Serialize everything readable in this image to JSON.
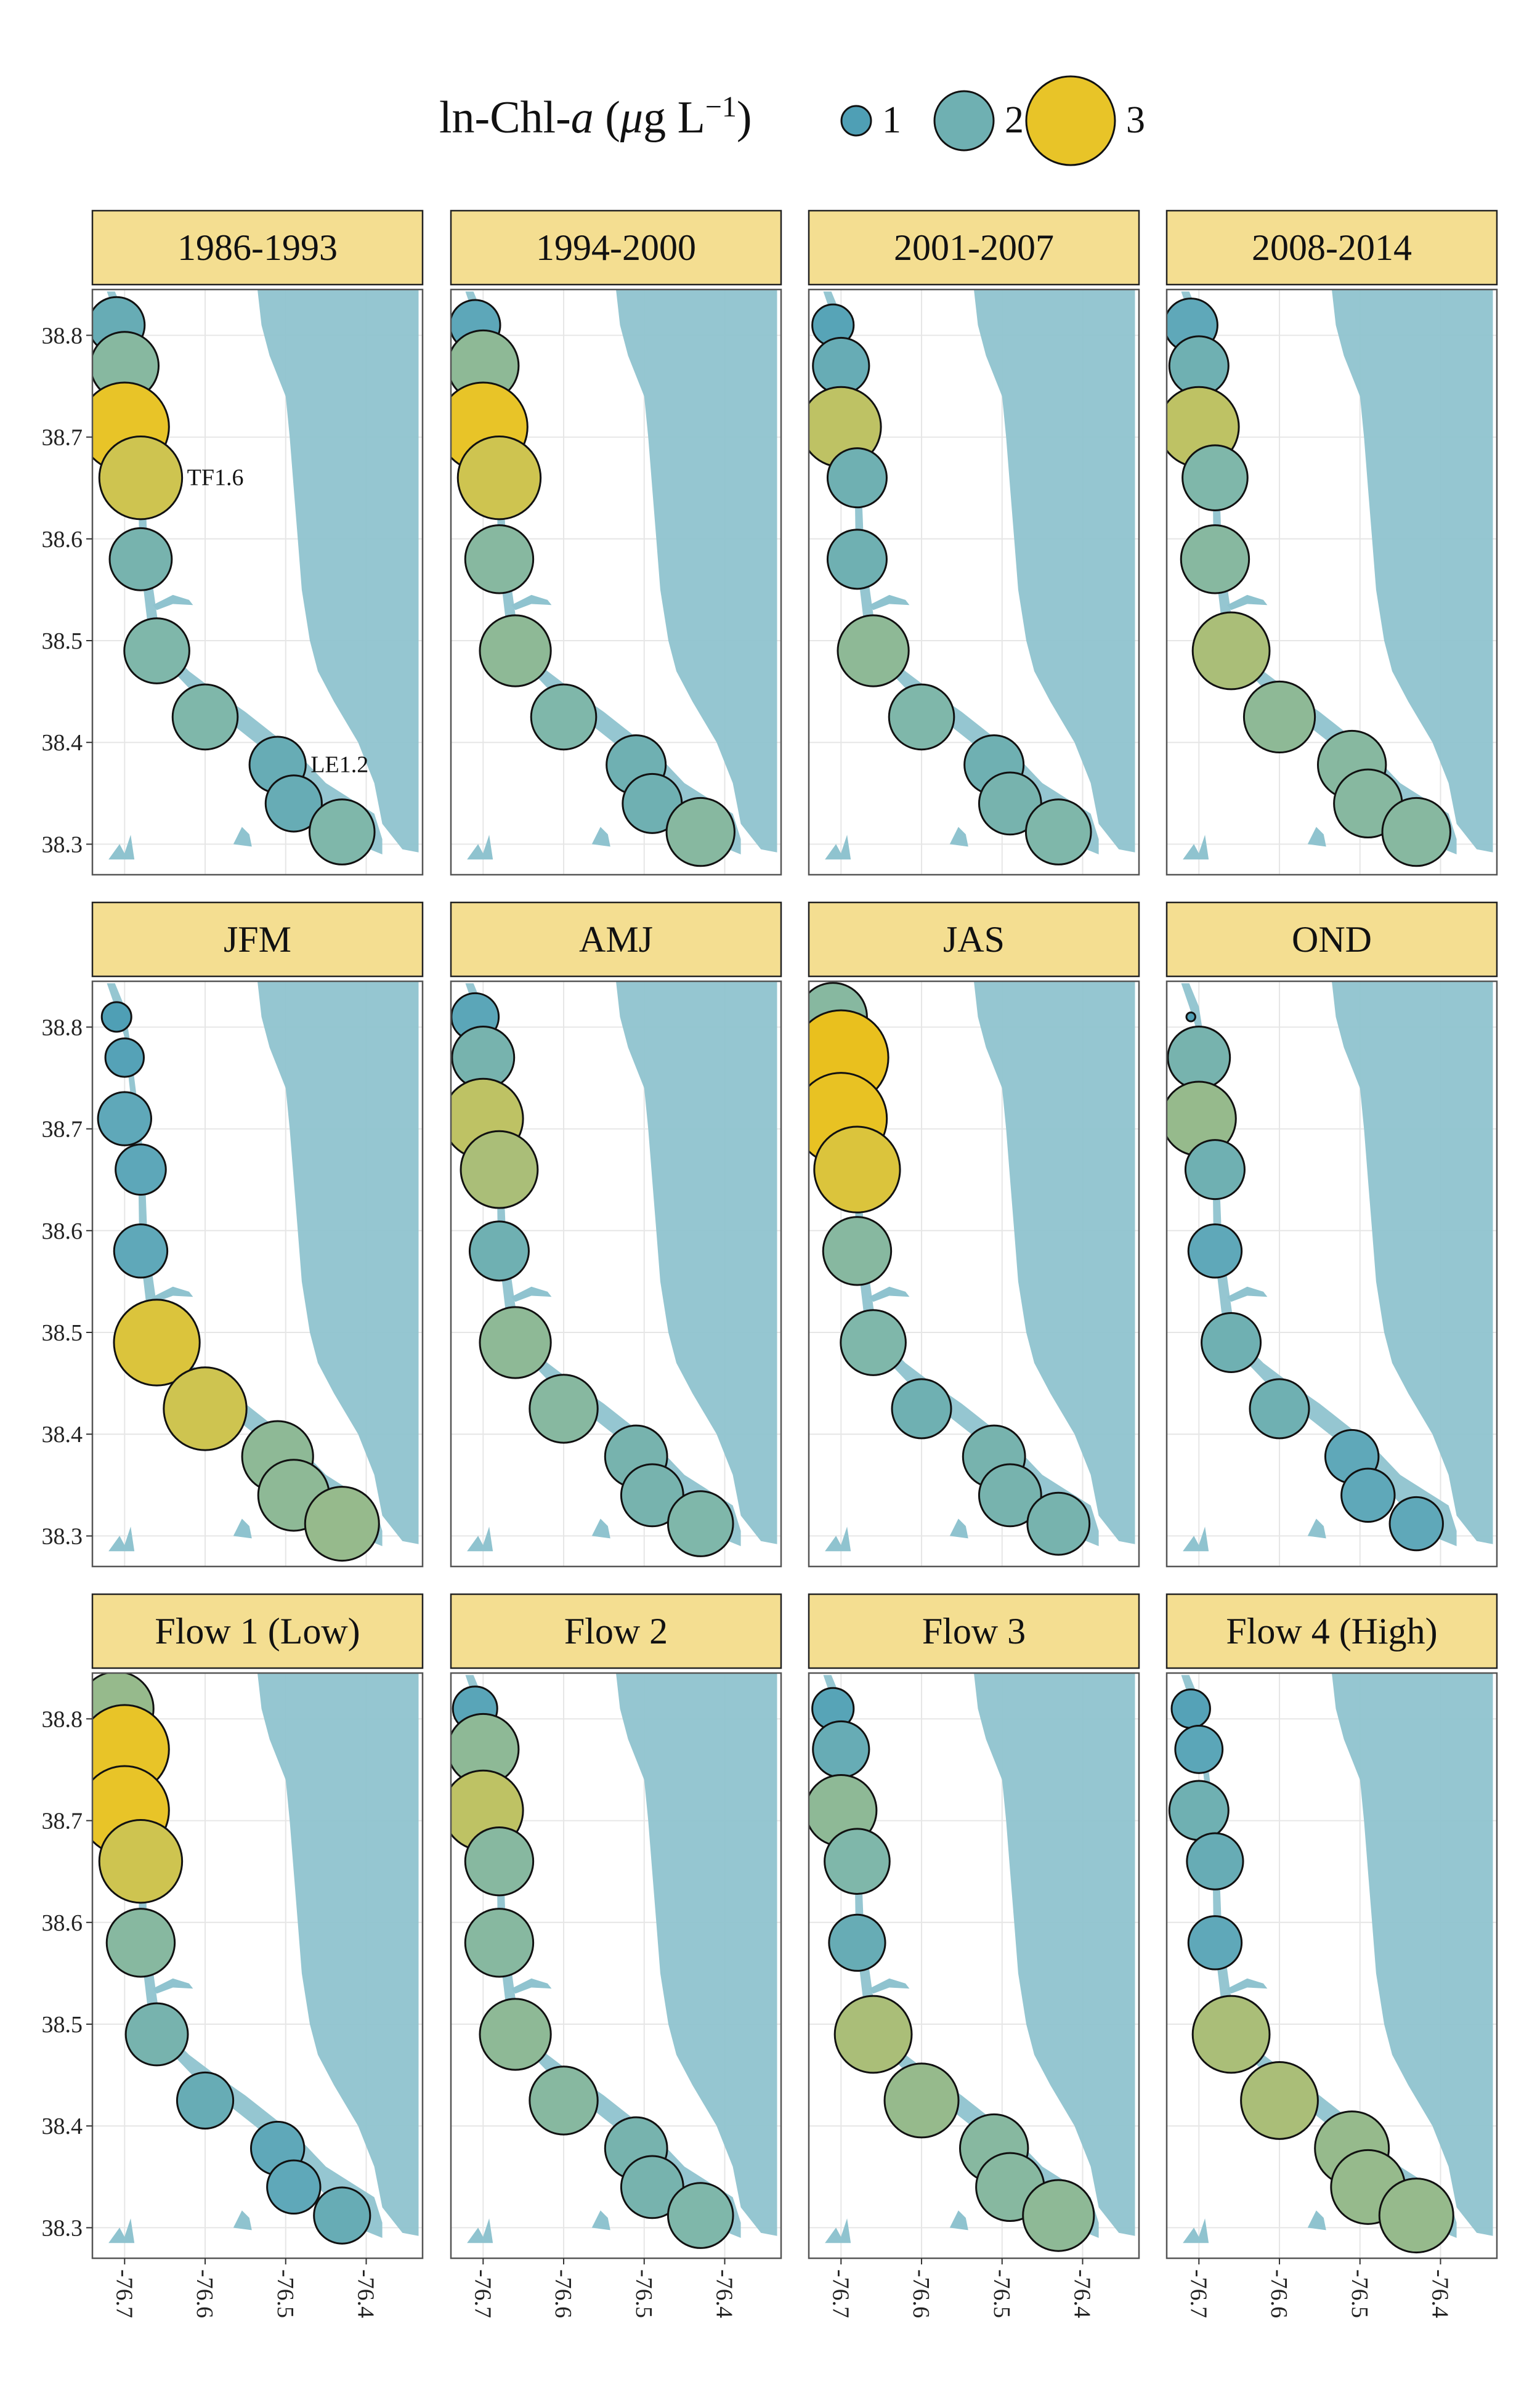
{
  "chart_data": {
    "type": "scatter",
    "legend": {
      "title_parts": [
        "ln-Chl-",
        "a",
        " (",
        "μ",
        "g L",
        "−1",
        ")"
      ],
      "position": "top",
      "entries": [
        {
          "label": "1",
          "value": 1,
          "color": "#4f9fb5"
        },
        {
          "label": "2",
          "value": 2,
          "color": "#7fb7c2"
        },
        {
          "label": "3",
          "value": 3,
          "color": "#c9c45a"
        }
      ]
    },
    "x_ticks": [
      -76.7,
      -76.6,
      -76.5,
      -76.4
    ],
    "x_tick_labels": [
      "-76.7",
      "-76.6",
      "-76.5",
      "-76.4"
    ],
    "y_ticks": [
      38.3,
      38.4,
      38.5,
      38.6,
      38.7,
      38.8
    ],
    "y_tick_labels": [
      "38.3",
      "38.4",
      "38.5",
      "38.6",
      "38.7",
      "38.8"
    ],
    "xlim": [
      -76.74,
      -76.33
    ],
    "ylim": [
      38.27,
      38.845
    ],
    "grid": true,
    "stations": [
      {
        "lon": -76.71,
        "lat": 38.81,
        "label": ""
      },
      {
        "lon": -76.7,
        "lat": 38.77,
        "label": ""
      },
      {
        "lon": -76.7,
        "lat": 38.71,
        "label": ""
      },
      {
        "lon": -76.68,
        "lat": 38.66,
        "label": "TF1.6"
      },
      {
        "lon": -76.68,
        "lat": 38.58,
        "label": ""
      },
      {
        "lon": -76.66,
        "lat": 38.49,
        "label": ""
      },
      {
        "lon": -76.6,
        "lat": 38.425,
        "label": ""
      },
      {
        "lon": -76.51,
        "lat": 38.378,
        "label": "LE1.2"
      },
      {
        "lon": -76.49,
        "lat": 38.34,
        "label": ""
      },
      {
        "lon": -76.43,
        "lat": 38.312,
        "label": ""
      }
    ],
    "panels": [
      {
        "title": "1986-1993",
        "values": [
          1.9,
          2.3,
          3.0,
          2.8,
          2.1,
          2.2,
          2.2,
          1.9,
          1.9,
          2.2
        ]
      },
      {
        "title": "1994-2000",
        "values": [
          1.7,
          2.4,
          3.0,
          2.8,
          2.3,
          2.4,
          2.2,
          2.0,
          2.0,
          2.3
        ]
      },
      {
        "title": "2001-2007",
        "values": [
          1.4,
          1.9,
          2.7,
          2.0,
          2.0,
          2.4,
          2.2,
          2.0,
          2.1,
          2.2
        ]
      },
      {
        "title": "2008-2014",
        "values": [
          1.8,
          2.0,
          2.7,
          2.2,
          2.3,
          2.6,
          2.4,
          2.3,
          2.3,
          2.3
        ]
      },
      {
        "title": "JFM",
        "values": [
          1.0,
          1.3,
          1.8,
          1.7,
          1.8,
          2.9,
          2.8,
          2.4,
          2.4,
          2.5
        ]
      },
      {
        "title": "AMJ",
        "values": [
          1.6,
          2.1,
          2.7,
          2.6,
          2.0,
          2.4,
          2.3,
          2.1,
          2.1,
          2.2
        ]
      },
      {
        "title": "JAS",
        "values": [
          2.3,
          3.2,
          3.1,
          2.9,
          2.3,
          2.2,
          2.0,
          2.1,
          2.1,
          2.1
        ]
      },
      {
        "title": "OND",
        "values": [
          0.3,
          2.1,
          2.5,
          2.0,
          1.8,
          2.0,
          2.0,
          1.8,
          1.8,
          1.8
        ]
      },
      {
        "title": "Flow 1 (Low)",
        "values": [
          2.5,
          3.0,
          3.0,
          2.8,
          2.3,
          2.1,
          1.9,
          1.8,
          1.8,
          1.9
        ]
      },
      {
        "title": "Flow 2",
        "values": [
          1.5,
          2.4,
          2.7,
          2.3,
          2.3,
          2.4,
          2.3,
          2.1,
          2.1,
          2.2
        ]
      },
      {
        "title": "Flow 3",
        "values": [
          1.4,
          1.9,
          2.4,
          2.2,
          1.9,
          2.6,
          2.5,
          2.3,
          2.3,
          2.4
        ]
      },
      {
        "title": "Flow 4 (High)",
        "values": [
          1.3,
          1.6,
          2.0,
          1.9,
          1.8,
          2.6,
          2.6,
          2.5,
          2.5,
          2.5
        ]
      }
    ]
  }
}
